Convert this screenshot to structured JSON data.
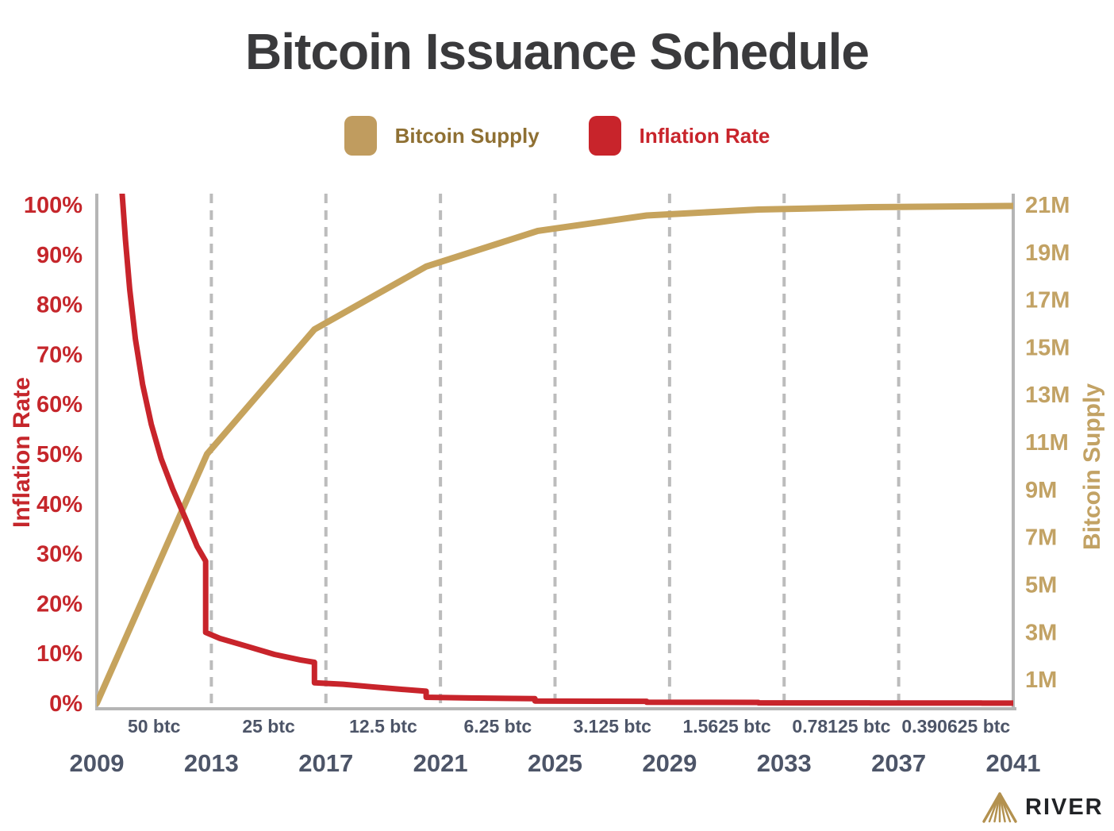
{
  "title": "Bitcoin Issuance Schedule",
  "legend": {
    "items": [
      {
        "label": "Bitcoin Supply",
        "swatch_color": "#c09c5f"
      },
      {
        "label": "Inflation Rate",
        "swatch_color": "#c8242b"
      }
    ]
  },
  "branding": {
    "name": "RIVER",
    "logo_color": "#b3914f"
  },
  "chart_data": {
    "type": "line",
    "title": "Bitcoin Issuance Schedule",
    "grid": "vertical-dashed-at-halvings",
    "gridline_color": "#bcbcbc",
    "axis_color": "#b5b5b5",
    "x_axis": {
      "range": [
        2009,
        2041
      ],
      "tick_years": [
        2009,
        2013,
        2017,
        2021,
        2025,
        2029,
        2033,
        2037,
        2041
      ],
      "halving_gridline_years": [
        2013,
        2017,
        2021,
        2025,
        2029,
        2033,
        2037
      ],
      "reward_labels": [
        {
          "label": "50 btc",
          "center_year": 2011
        },
        {
          "label": "25 btc",
          "center_year": 2015
        },
        {
          "label": "12.5 btc",
          "center_year": 2019
        },
        {
          "label": "6.25 btc",
          "center_year": 2023
        },
        {
          "label": "3.125 btc",
          "center_year": 2027
        },
        {
          "label": "1.5625 btc",
          "center_year": 2031
        },
        {
          "label": "0.78125 btc",
          "center_year": 2035
        },
        {
          "label": "0.390625 btc",
          "center_year": 2039
        }
      ]
    },
    "y_left": {
      "label": "Inflation Rate",
      "range": [
        0,
        100
      ],
      "unit": "%",
      "ticks": [
        {
          "label": "0%",
          "value": 0
        },
        {
          "label": "10%",
          "value": 10
        },
        {
          "label": "20%",
          "value": 20
        },
        {
          "label": "30%",
          "value": 30
        },
        {
          "label": "40%",
          "value": 40
        },
        {
          "label": "50%",
          "value": 50
        },
        {
          "label": "60%",
          "value": 60
        },
        {
          "label": "70%",
          "value": 70
        },
        {
          "label": "80%",
          "value": 80
        },
        {
          "label": "90%",
          "value": 90
        },
        {
          "label": "100%",
          "value": 100
        }
      ]
    },
    "y_right": {
      "label": "Bitcoin Supply",
      "range": [
        0,
        21
      ],
      "unit": "M",
      "ticks": [
        {
          "label": "1M",
          "value": 1
        },
        {
          "label": "3M",
          "value": 3
        },
        {
          "label": "5M",
          "value": 5
        },
        {
          "label": "7M",
          "value": 7
        },
        {
          "label": "9M",
          "value": 9
        },
        {
          "label": "11M",
          "value": 11
        },
        {
          "label": "13M",
          "value": 13
        },
        {
          "label": "15M",
          "value": 15
        },
        {
          "label": "17M",
          "value": 17
        },
        {
          "label": "19M",
          "value": 19
        },
        {
          "label": "21M",
          "value": 21
        }
      ]
    },
    "series": [
      {
        "name": "Bitcoin Supply",
        "axis": "right",
        "color": "#c6a35d",
        "stroke_width": 8,
        "points": [
          [
            2009.0,
            0
          ],
          [
            2012.85,
            10.5
          ],
          [
            2016.6,
            15.75
          ],
          [
            2020.5,
            18.4
          ],
          [
            2024.4,
            19.9
          ],
          [
            2028.2,
            20.55
          ],
          [
            2032.1,
            20.8
          ],
          [
            2036.0,
            20.9
          ],
          [
            2041.0,
            20.95
          ]
        ]
      },
      {
        "name": "Inflation Rate",
        "axis": "left",
        "color": "#c8242b",
        "stroke_width": 7,
        "points": [
          [
            2009.85,
            105
          ],
          [
            2010.0,
            93
          ],
          [
            2010.15,
            83
          ],
          [
            2010.35,
            73
          ],
          [
            2010.6,
            64
          ],
          [
            2010.9,
            56
          ],
          [
            2011.25,
            49
          ],
          [
            2011.65,
            43
          ],
          [
            2012.1,
            37
          ],
          [
            2012.5,
            31.5
          ],
          [
            2012.8,
            28.5
          ],
          [
            2012.8,
            14.2
          ],
          [
            2013.3,
            13.0
          ],
          [
            2014.2,
            11.5
          ],
          [
            2015.2,
            9.8
          ],
          [
            2016.1,
            8.7
          ],
          [
            2016.6,
            8.2
          ],
          [
            2016.6,
            4.1
          ],
          [
            2017.6,
            3.8
          ],
          [
            2018.6,
            3.3
          ],
          [
            2019.6,
            2.8
          ],
          [
            2020.5,
            2.4
          ],
          [
            2020.5,
            1.2
          ],
          [
            2022.0,
            1.05
          ],
          [
            2024.3,
            0.9
          ],
          [
            2024.3,
            0.45
          ],
          [
            2026.5,
            0.4
          ],
          [
            2028.2,
            0.38
          ],
          [
            2028.2,
            0.19
          ],
          [
            2030.5,
            0.17
          ],
          [
            2032.1,
            0.16
          ],
          [
            2032.1,
            0.08
          ],
          [
            2034.5,
            0.07
          ],
          [
            2036.0,
            0.065
          ],
          [
            2036.0,
            0.033
          ],
          [
            2038.5,
            0.03
          ],
          [
            2039.9,
            0.028
          ],
          [
            2039.9,
            0.014
          ],
          [
            2041.0,
            0.012
          ]
        ]
      }
    ]
  }
}
